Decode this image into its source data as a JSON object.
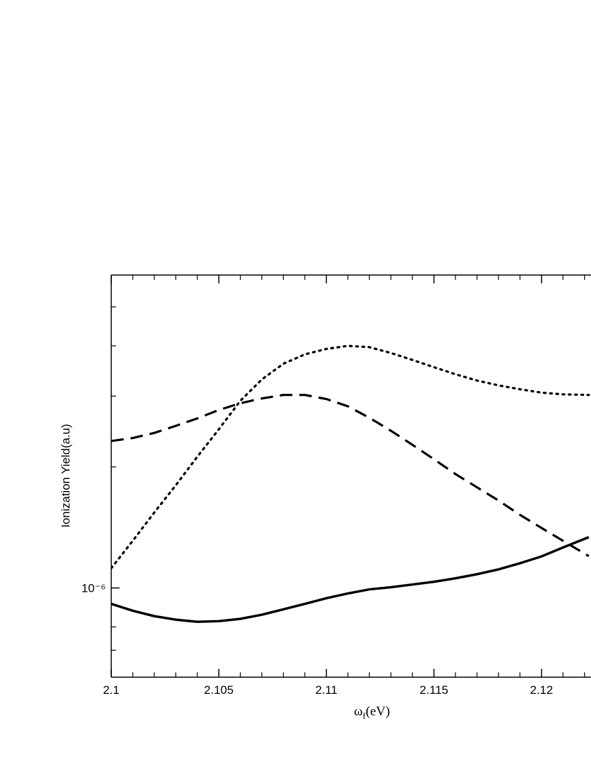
{
  "chart_data": {
    "type": "line",
    "ylabel": "Ionization Yield(a.u)",
    "xlabel_parts": [
      "ω",
      "f",
      "(eV)"
    ],
    "x": [
      2.1,
      2.101,
      2.102,
      2.103,
      2.104,
      2.105,
      2.106,
      2.107,
      2.108,
      2.109,
      2.11,
      2.111,
      2.112,
      2.113,
      2.114,
      2.115,
      2.116,
      2.117,
      2.118,
      2.119,
      2.12,
      2.121,
      2.1222
    ],
    "series": [
      {
        "color": "#000000",
        "dash": "solid",
        "values": [
          9.13e-07,
          8.78e-07,
          8.51e-07,
          8.34e-07,
          8.24e-07,
          8.27e-07,
          8.38e-07,
          8.58e-07,
          8.85e-07,
          9.13e-07,
          9.43e-07,
          9.69e-07,
          9.92e-07,
          1.004e-06,
          1.02e-06,
          1.036e-06,
          1.057e-06,
          1.082e-06,
          1.112e-06,
          1.152e-06,
          1.198e-06,
          1.261e-06,
          1.338e-06
        ]
      },
      {
        "color": "#000000",
        "dash": "dashed",
        "values": [
          2.32e-06,
          2.36e-06,
          2.43e-06,
          2.53e-06,
          2.64e-06,
          2.77e-06,
          2.88e-06,
          2.96e-06,
          3.02e-06,
          3.02e-06,
          2.95e-06,
          2.83e-06,
          2.65e-06,
          2.46e-06,
          2.27e-06,
          2.09e-06,
          1.92e-06,
          1.78e-06,
          1.65e-06,
          1.52e-06,
          1.41e-06,
          1.31e-06,
          1.2e-06
        ]
      },
      {
        "color": "#000000",
        "dash": "dotted",
        "values": [
          1.12e-06,
          1.31e-06,
          1.54e-06,
          1.8e-06,
          2.12e-06,
          2.48e-06,
          2.92e-06,
          3.3e-06,
          3.61e-06,
          3.81e-06,
          3.93e-06,
          4e-06,
          3.97e-06,
          3.84e-06,
          3.69e-06,
          3.54e-06,
          3.4e-06,
          3.28e-06,
          3.19e-06,
          3.12e-06,
          3.06e-06,
          3.03e-06,
          3.02e-06
        ]
      }
    ],
    "xlim": [
      2.1,
      2.1222
    ],
    "xticks": [
      2.1,
      2.105,
      2.11,
      2.115,
      2.12
    ],
    "xminorticks": [
      2.101,
      2.102,
      2.103,
      2.104,
      2.106,
      2.107,
      2.108,
      2.109,
      2.111,
      2.112,
      2.113,
      2.114,
      2.116,
      2.117,
      2.118,
      2.119,
      2.121,
      2.122
    ],
    "yscale": "log",
    "ylim": [
      6e-07,
      6e-06
    ],
    "yticks": [
      {
        "value": 1e-06,
        "label": "10⁻⁶"
      }
    ],
    "yminorticks": [
      7e-07,
      8e-07,
      2e-06,
      3e-06,
      4e-06,
      5e-06
    ],
    "grid": false
  }
}
